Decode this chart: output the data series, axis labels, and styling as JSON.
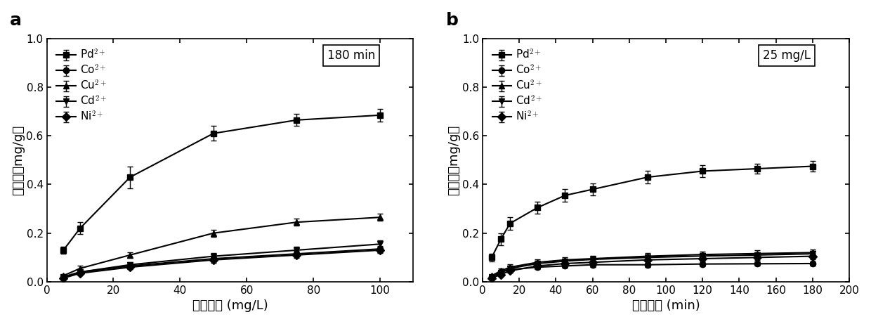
{
  "panel_a": {
    "x": [
      5,
      10,
      25,
      50,
      75,
      100
    ],
    "Pd": [
      0.13,
      0.22,
      0.43,
      0.61,
      0.665,
      0.685
    ],
    "Pd_err": [
      0.015,
      0.025,
      0.045,
      0.03,
      0.025,
      0.025
    ],
    "Co": [
      0.02,
      0.04,
      0.065,
      0.095,
      0.115,
      0.135
    ],
    "Co_err": [
      0.005,
      0.006,
      0.01,
      0.01,
      0.012,
      0.013
    ],
    "Cu": [
      0.025,
      0.055,
      0.11,
      0.2,
      0.245,
      0.265
    ],
    "Cu_err": [
      0.005,
      0.01,
      0.012,
      0.015,
      0.015,
      0.015
    ],
    "Cd": [
      0.02,
      0.04,
      0.07,
      0.105,
      0.13,
      0.155
    ],
    "Cd_err": [
      0.005,
      0.006,
      0.01,
      0.012,
      0.015,
      0.016
    ],
    "Ni": [
      0.015,
      0.035,
      0.06,
      0.09,
      0.11,
      0.13
    ],
    "Ni_err": [
      0.004,
      0.005,
      0.009,
      0.011,
      0.011,
      0.011
    ],
    "xlabel": "原始浓度 (mg/L)",
    "ylabel": "吸附量（mg/g）",
    "annotation": "180 min",
    "xlim": [
      0,
      110
    ],
    "ylim": [
      0,
      1.0
    ],
    "xticks": [
      0,
      20,
      40,
      60,
      80,
      100
    ],
    "yticks": [
      0.0,
      0.2,
      0.4,
      0.6,
      0.8,
      1.0
    ],
    "panel_label": "a"
  },
  "panel_b": {
    "x": [
      5,
      10,
      15,
      30,
      45,
      60,
      90,
      120,
      150,
      180
    ],
    "Pd": [
      0.1,
      0.175,
      0.24,
      0.305,
      0.355,
      0.38,
      0.43,
      0.455,
      0.465,
      0.475
    ],
    "Pd_err": [
      0.015,
      0.025,
      0.025,
      0.025,
      0.025,
      0.025,
      0.025,
      0.025,
      0.02,
      0.022
    ],
    "Co": [
      0.02,
      0.04,
      0.05,
      0.06,
      0.065,
      0.07,
      0.07,
      0.073,
      0.074,
      0.075
    ],
    "Co_err": [
      0.005,
      0.008,
      0.008,
      0.008,
      0.008,
      0.009,
      0.009,
      0.009,
      0.009,
      0.009
    ],
    "Cu": [
      0.025,
      0.045,
      0.06,
      0.08,
      0.09,
      0.095,
      0.105,
      0.112,
      0.116,
      0.12
    ],
    "Cu_err": [
      0.005,
      0.01,
      0.012,
      0.012,
      0.012,
      0.013,
      0.013,
      0.013,
      0.013,
      0.013
    ],
    "Cd": [
      0.02,
      0.038,
      0.055,
      0.075,
      0.085,
      0.092,
      0.1,
      0.106,
      0.11,
      0.115
    ],
    "Cd_err": [
      0.005,
      0.008,
      0.01,
      0.011,
      0.011,
      0.011,
      0.012,
      0.012,
      0.012,
      0.012
    ],
    "Ni": [
      0.015,
      0.03,
      0.045,
      0.065,
      0.075,
      0.08,
      0.09,
      0.095,
      0.1,
      0.105
    ],
    "Ni_err": [
      0.004,
      0.007,
      0.009,
      0.01,
      0.01,
      0.011,
      0.012,
      0.012,
      0.012,
      0.012
    ],
    "xlabel": "吸附时间 (min)",
    "ylabel": "吸附量（mg/g）",
    "annotation": "25 mg/L",
    "xlim": [
      0,
      200
    ],
    "ylim": [
      0,
      1.0
    ],
    "xticks": [
      0,
      20,
      40,
      60,
      80,
      100,
      120,
      140,
      160,
      180,
      200
    ],
    "yticks": [
      0.0,
      0.2,
      0.4,
      0.6,
      0.8,
      1.0
    ],
    "panel_label": "b"
  },
  "ions": [
    "Pd",
    "Co",
    "Cu",
    "Cd",
    "Ni"
  ],
  "markers": [
    "s",
    "o",
    "^",
    "v",
    "D"
  ],
  "legend_labels_a": [
    "Pd$^{2+}$",
    "Co$^{2+}$",
    "Cu$^{2+}$",
    "Cd$^{2+}$",
    "Ni$^{2+}$"
  ],
  "legend_labels_b": [
    "Pd$^{2+}$",
    "Co$^{2+}$",
    "Cu$^{2+}$",
    "Cd$^{2+}$",
    "Ni$^{2+}$"
  ],
  "line_color": "#000000",
  "fontsize_axis_label": 13,
  "fontsize_tick": 11,
  "fontsize_panel": 18,
  "fontsize_annotation": 12,
  "fontsize_legend": 11,
  "markersize": 6,
  "linewidth": 1.5,
  "capsize": 3,
  "elinewidth": 1.0,
  "bg_color": "#ffffff"
}
